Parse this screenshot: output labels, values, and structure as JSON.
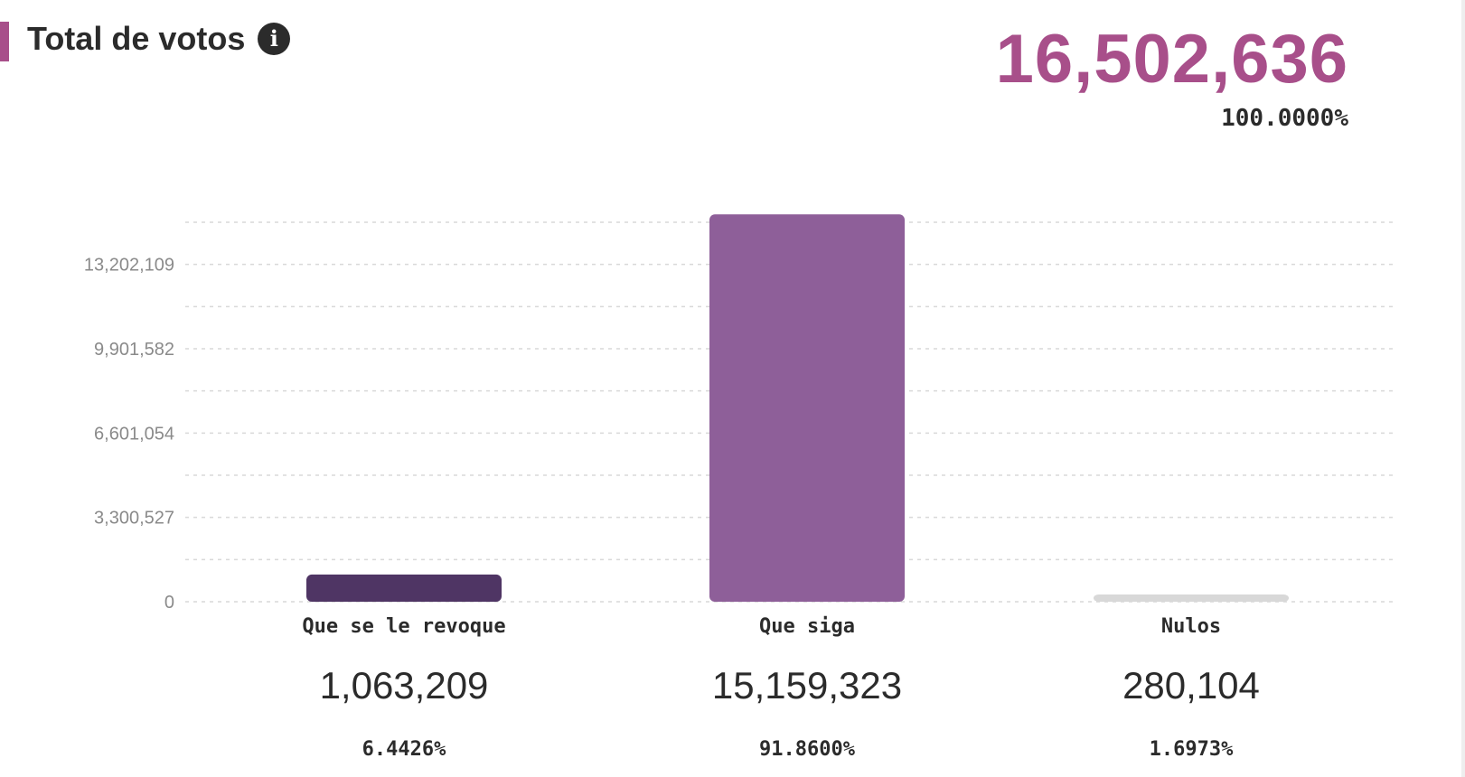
{
  "header": {
    "title": "Total de votos",
    "info_icon": "info-circle-icon",
    "total_value": "16,502,636",
    "total_percent": "100.0000%"
  },
  "colors": {
    "accent": "#a84f8a",
    "text": "#2b2b2b",
    "axis_text": "#8a8a8a",
    "grid": "#d9d9d9"
  },
  "chart_data": {
    "type": "bar",
    "categories": [
      "Que se le revoque",
      "Que siga",
      "Nulos"
    ],
    "values": [
      1063209,
      15159323,
      280104
    ],
    "value_labels": [
      "1,063,209",
      "15,159,323",
      "280,104"
    ],
    "percent_labels": [
      "6.4426%",
      "91.8600%",
      "1.6973%"
    ],
    "bar_colors": [
      "#4f3564",
      "#8e5f99",
      "#d8d8d8"
    ],
    "y_ticks": [
      0,
      3300527,
      6601054,
      9901582,
      13202109
    ],
    "y_tick_labels": [
      "0",
      "3,300,527",
      "6,601,054",
      "9,901,582",
      "13,202,109"
    ],
    "ylim": [
      0,
      15841999
    ],
    "grid": true,
    "title": "",
    "xlabel": "",
    "ylabel": ""
  }
}
